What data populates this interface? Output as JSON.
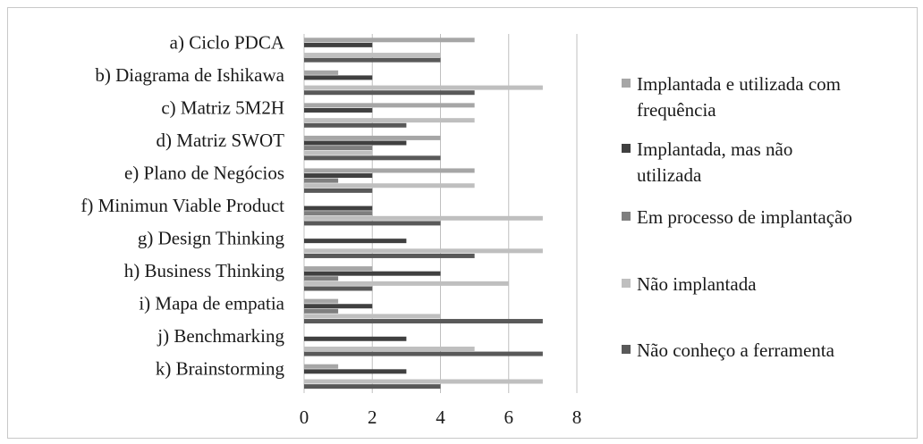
{
  "chart_data": {
    "type": "bar",
    "orientation": "horizontal",
    "categories": [
      "a) Ciclo PDCA",
      "b) Diagrama de Ishikawa",
      "c) Matriz 5M2H",
      "d) Matriz SWOT",
      "e) Plano de Negócios",
      "f) Minimun Viable Product",
      "g) Design Thinking",
      "h) Business Thinking",
      "i) Mapa de empatia",
      "j) Benchmarking",
      "k) Brainstorming"
    ],
    "series": [
      {
        "name": "Implantada e utilizada com frequência",
        "color": "#a6a6a6",
        "values": [
          5,
          1,
          5,
          4,
          5,
          0,
          0,
          2,
          1,
          0,
          1
        ]
      },
      {
        "name": "Implantada, mas não utilizada",
        "color": "#404040",
        "values": [
          2,
          2,
          2,
          3,
          2,
          2,
          3,
          4,
          2,
          3,
          3
        ]
      },
      {
        "name": "Em processo de implantação",
        "color": "#7f7f7f",
        "values": [
          0,
          0,
          0,
          2,
          1,
          2,
          0,
          1,
          1,
          0,
          0
        ]
      },
      {
        "name": "Não implantada",
        "color": "#bfbfbf",
        "values": [
          4,
          7,
          5,
          2,
          5,
          7,
          7,
          6,
          4,
          5,
          7
        ]
      },
      {
        "name": "Não conheço a ferramenta",
        "color": "#595959",
        "values": [
          4,
          5,
          3,
          4,
          2,
          4,
          5,
          2,
          7,
          7,
          4
        ]
      }
    ],
    "xlim": [
      0,
      8
    ],
    "xticks": [
      0,
      2,
      4,
      6,
      8
    ],
    "grid": true,
    "legend": "right"
  }
}
